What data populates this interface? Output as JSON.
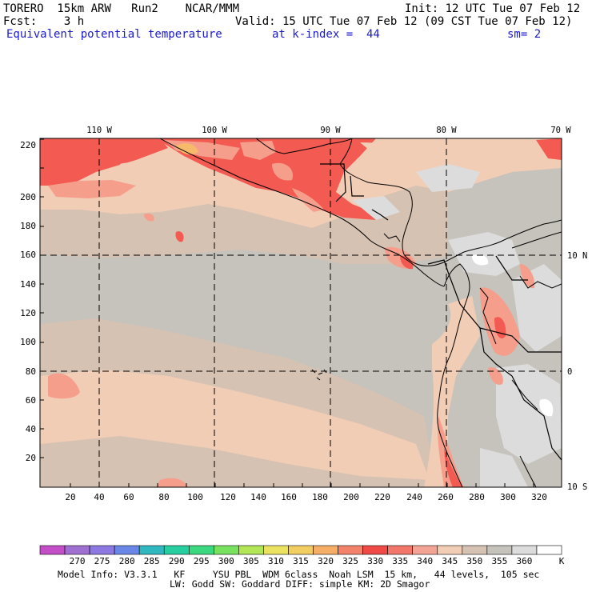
{
  "header": {
    "model": "TORERO  15km ARW   Run2    NCAR/MMM",
    "init": "Init: 12 UTC Tue 07 Feb 12",
    "fcst": "Fcst:    3 h",
    "valid": "Valid: 15 UTC Tue 07 Feb 12 (09 CST Tue 07 Feb 12)",
    "field": "Equivalent potential temperature",
    "level": "at k-index =  44",
    "smooth": "sm= 2"
  },
  "map": {
    "lon_labels": [
      "110 W",
      "100 W",
      "90 W",
      "80 W",
      "70 W"
    ],
    "lat_labels": [
      "10 N",
      "0",
      "10 S"
    ],
    "x_ticks": [
      "20",
      "40",
      "60",
      "80",
      "100",
      "120",
      "140",
      "160",
      "180",
      "200",
      "220",
      "240",
      "260",
      "280",
      "300",
      "320"
    ],
    "y_ticks": [
      "20",
      "40",
      "60",
      "80",
      "100",
      "120",
      "140",
      "160",
      "180",
      "200",
      "220"
    ],
    "colors": {
      "gray_350": "#c6c2bc",
      "tan_345": "#d6c2b2",
      "peach_340": "#f2cdb6",
      "salmon_335": "#f69e8c",
      "red_330": "#f25a52",
      "orange_320": "#f6ba6a",
      "lightgray_355": "#dcdcdc",
      "white_360": "#ffffff"
    }
  },
  "colorbar": {
    "labels": [
      "270",
      "275",
      "280",
      "285",
      "290",
      "295",
      "300",
      "305",
      "310",
      "315",
      "320",
      "325",
      "330",
      "335",
      "340",
      "345",
      "350",
      "355",
      "360"
    ],
    "unit": "K",
    "colors": [
      "#c44ec8",
      "#a070d0",
      "#8c78e0",
      "#6a86e6",
      "#30b8c0",
      "#26cea0",
      "#3cd880",
      "#78e260",
      "#b2e656",
      "#ece262",
      "#f2ce62",
      "#f6ae66",
      "#f2826a",
      "#f04a46",
      "#f2766a",
      "#f4a494",
      "#f2cdb6",
      "#d6c2b2",
      "#c6c2bc",
      "#dcdcdc",
      "#ffffff"
    ]
  },
  "footer": {
    "line1": "Model Info: V3.3.1   KF     YSU PBL  WDM 6class  Noah LSM  15 km,   44 levels,  105 sec",
    "line2": "LW: Godd SW: Goddard DIFF: simple KM: 2D Smagor"
  }
}
